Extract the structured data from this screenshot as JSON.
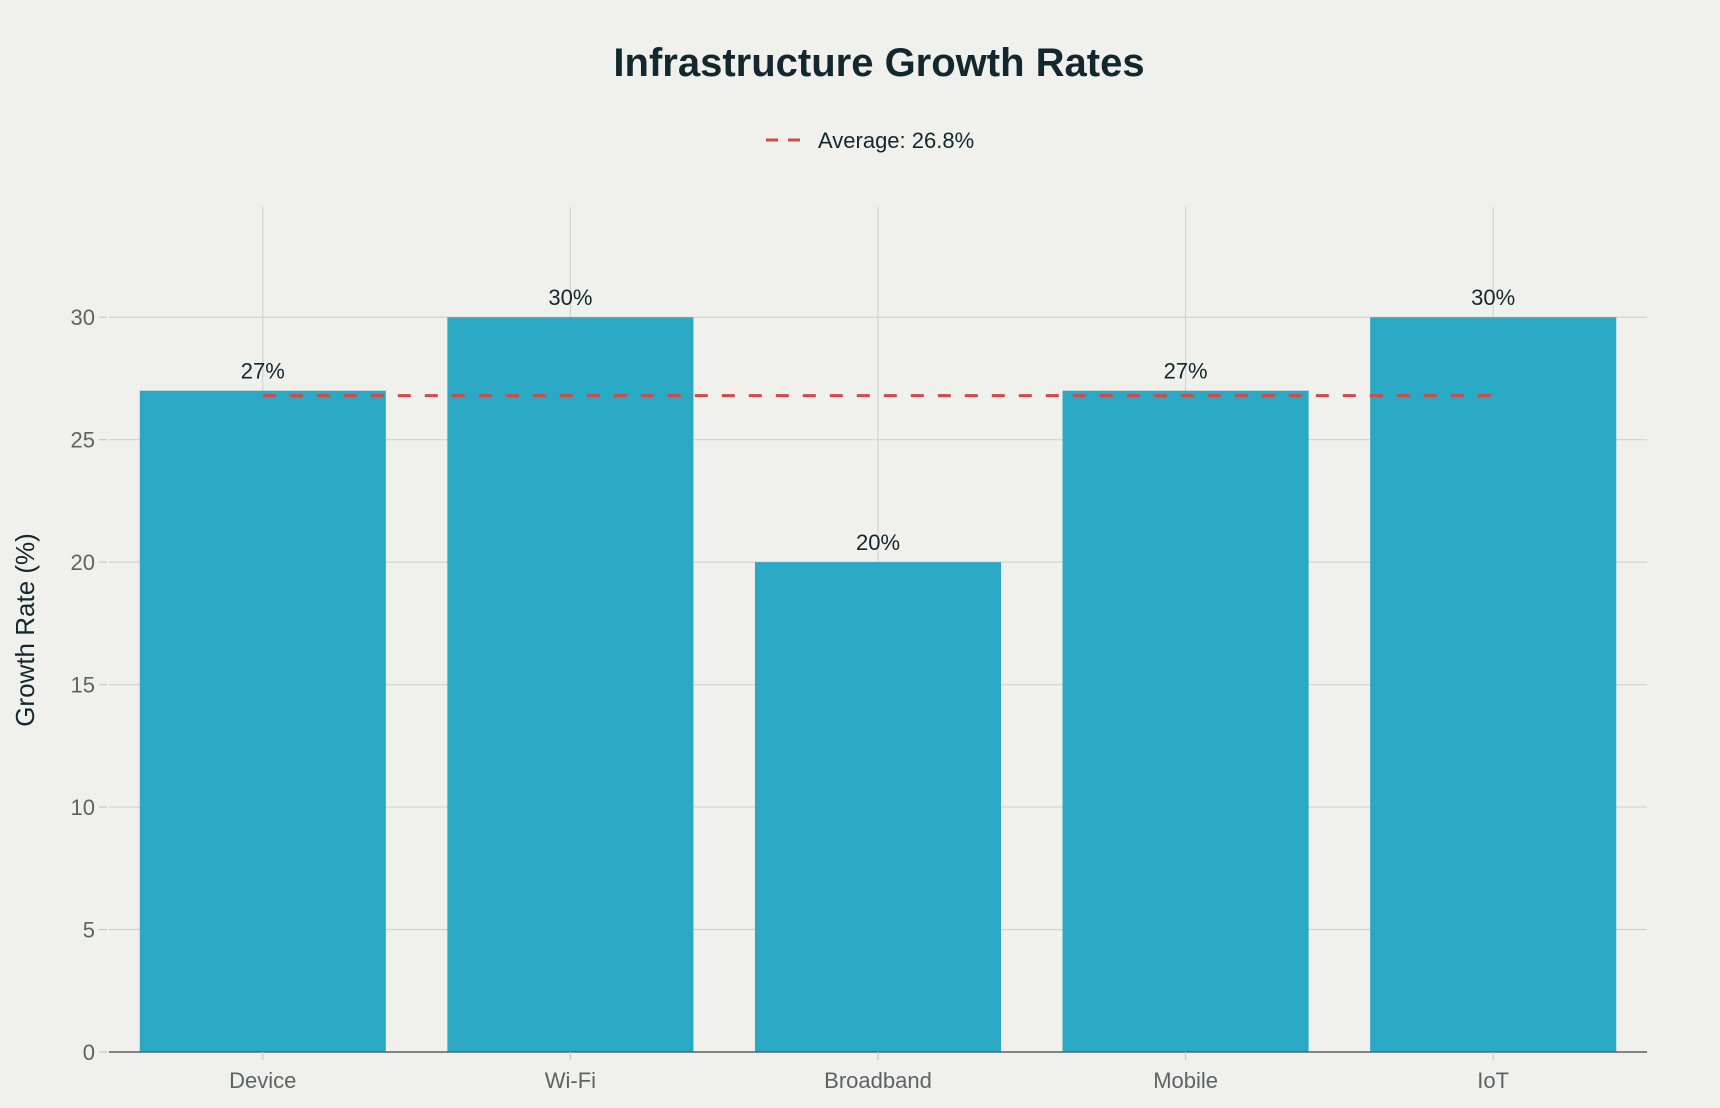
{
  "chart_data": {
    "type": "bar",
    "title": "Infrastructure Growth Rates",
    "xlabel": "",
    "ylabel": "Growth Rate (%)",
    "categories": [
      "Device",
      "Wi-Fi",
      "Broadband",
      "Mobile",
      "IoT"
    ],
    "values": [
      27,
      30,
      20,
      27,
      30
    ],
    "data_labels": [
      "27%",
      "30%",
      "20%",
      "27%",
      "30%"
    ],
    "ylim": [
      0,
      34.5
    ],
    "yticks": [
      0,
      5,
      10,
      15,
      20,
      25,
      30
    ],
    "grid": true,
    "bar_color": "#2ba9c4",
    "reference_line": {
      "label": "Average: 26.8%",
      "value": 26.8,
      "style": "dashed",
      "color": "#d24a43"
    },
    "legend": {
      "position": "top-center",
      "entries": [
        "Average: 26.8%"
      ]
    }
  }
}
